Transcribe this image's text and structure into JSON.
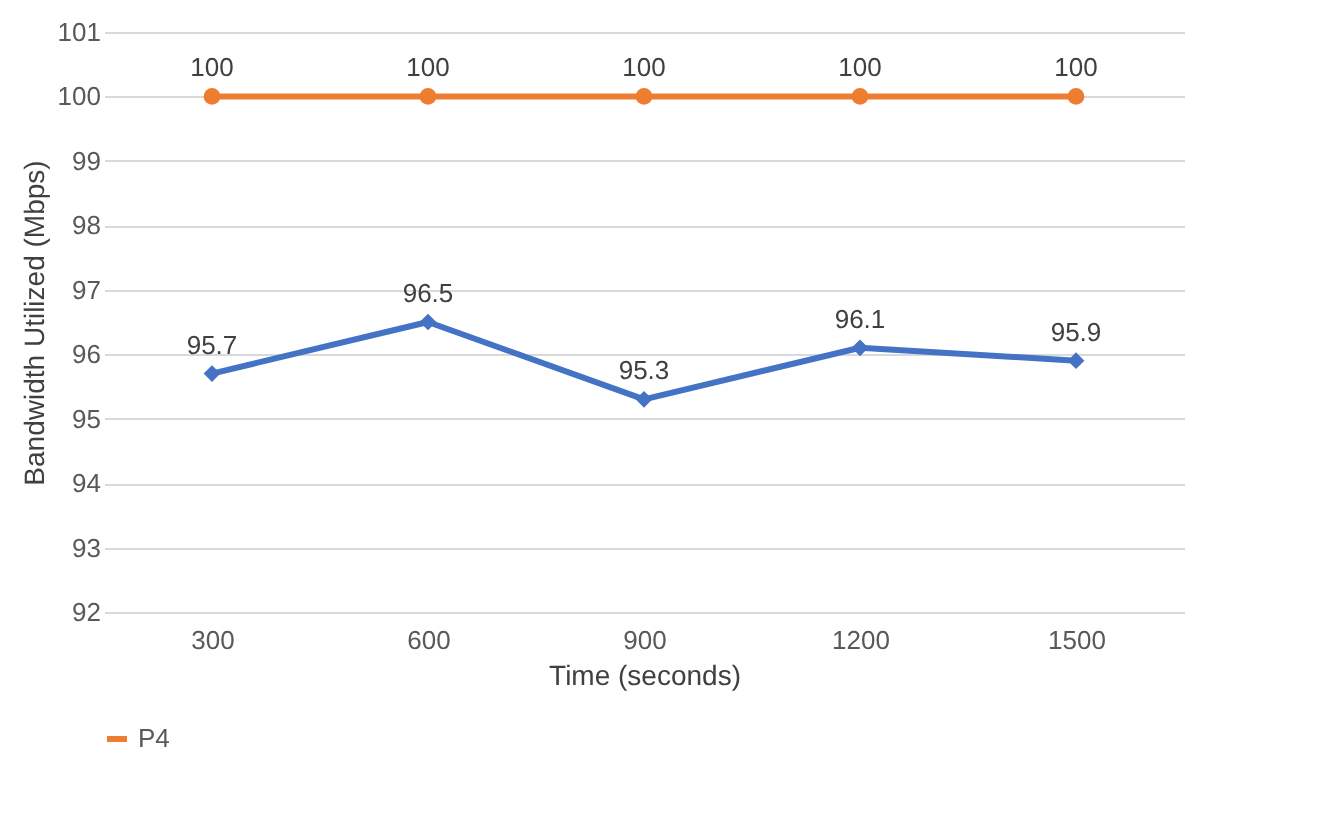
{
  "chart_data": {
    "type": "line",
    "xlabel": "Time (seconds)",
    "ylabel": "Bandwidth Utilized (Mbps)",
    "categories": [
      "300",
      "600",
      "900",
      "1200",
      "1500"
    ],
    "series": [
      {
        "color": "#4472c4",
        "marker": "diamond",
        "values": [
          95.7,
          96.5,
          95.3,
          96.1,
          95.9
        ]
      },
      {
        "name": "P4",
        "color": "#ed7d31",
        "marker": "circle",
        "values": [
          100,
          100,
          100,
          100,
          100
        ]
      }
    ],
    "ylim": [
      92,
      101
    ],
    "yticks": [
      92,
      93,
      94,
      95,
      96,
      97,
      98,
      99,
      100,
      101
    ],
    "grid": "y",
    "legend": "bottom",
    "data_labels": true,
    "line_style": "solid"
  }
}
